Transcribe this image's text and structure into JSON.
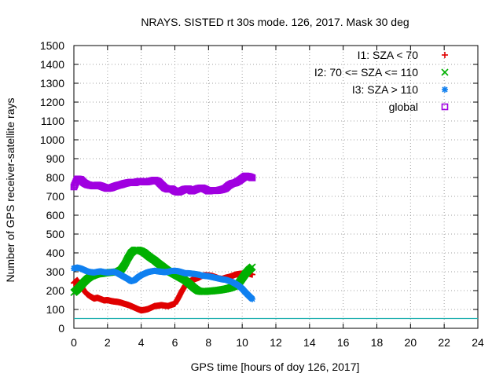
{
  "chart_data": {
    "type": "scatter",
    "title": "NRAYS. SISTED rt 30s mode. 126, 2017. Mask 30 deg",
    "xlabel": "GPS time [hours of doy 126, 2017]",
    "ylabel": "Number of GPS receiver-satellite rays",
    "xlim": [
      0,
      24
    ],
    "ylim": [
      0,
      1500
    ],
    "xticks": [
      0,
      2,
      4,
      6,
      8,
      10,
      12,
      14,
      16,
      18,
      20,
      22,
      24
    ],
    "yticks": [
      0,
      100,
      200,
      300,
      400,
      500,
      600,
      700,
      800,
      900,
      1000,
      1100,
      1200,
      1300,
      1400,
      1500
    ],
    "xtick_labels": [
      "0",
      "2",
      "4",
      "6",
      "8",
      "10",
      "12",
      "14",
      "16",
      "18",
      "20",
      "22",
      "24"
    ],
    "ytick_labels": [
      "0",
      "100",
      "200",
      "300",
      "400",
      "500",
      "600",
      "700",
      "800",
      "900",
      "1000",
      "1100",
      "1200",
      "1300",
      "1400",
      "1500"
    ],
    "grid": true,
    "legend_position": "top-right",
    "series": [
      {
        "name": "I1: SZA < 70",
        "color": "#e00000",
        "marker": "plus",
        "x": [
          0,
          0.2,
          0.4,
          0.6,
          0.8,
          1.0,
          1.2,
          1.4,
          1.6,
          1.8,
          2.0,
          2.2,
          2.4,
          2.6,
          2.8,
          3.0,
          3.2,
          3.4,
          3.6,
          3.8,
          4.0,
          4.2,
          4.4,
          4.6,
          4.8,
          5.0,
          5.2,
          5.4,
          5.6,
          5.8,
          6.0,
          6.2,
          6.4,
          6.6,
          6.8,
          7.0,
          7.2,
          7.4,
          7.6,
          7.8,
          8.0,
          8.2,
          8.4,
          8.6,
          8.8,
          9.0,
          9.2,
          9.4,
          9.6,
          9.8,
          10.0,
          10.2,
          10.4,
          10.6
        ],
        "y": [
          240,
          255,
          230,
          200,
          180,
          168,
          158,
          162,
          155,
          148,
          150,
          145,
          142,
          140,
          136,
          130,
          125,
          118,
          110,
          102,
          95,
          98,
          102,
          110,
          118,
          120,
          123,
          120,
          118,
          125,
          130,
          160,
          195,
          225,
          245,
          255,
          262,
          268,
          278,
          282,
          280,
          278,
          272,
          265,
          262,
          268,
          272,
          278,
          285,
          288,
          290,
          292,
          290,
          285
        ]
      },
      {
        "name": "I2: 70 <= SZA <= 110",
        "color": "#00b000",
        "marker": "cross",
        "x": [
          0,
          0.2,
          0.4,
          0.6,
          0.8,
          1.0,
          1.2,
          1.4,
          1.6,
          1.8,
          2.0,
          2.2,
          2.4,
          2.6,
          2.8,
          3.0,
          3.2,
          3.4,
          3.6,
          3.8,
          4.0,
          4.2,
          4.4,
          4.6,
          4.8,
          5.0,
          5.2,
          5.4,
          5.6,
          5.8,
          6.0,
          6.2,
          6.4,
          6.6,
          6.8,
          7.0,
          7.2,
          7.4,
          7.6,
          7.8,
          8.0,
          8.2,
          8.4,
          8.6,
          8.8,
          9.0,
          9.2,
          9.4,
          9.6,
          9.8,
          10.0,
          10.2,
          10.4,
          10.6
        ],
        "y": [
          190,
          205,
          225,
          245,
          262,
          275,
          282,
          288,
          290,
          293,
          295,
          297,
          298,
          300,
          310,
          335,
          370,
          400,
          415,
          415,
          410,
          400,
          385,
          372,
          360,
          345,
          332,
          318,
          305,
          295,
          285,
          275,
          265,
          255,
          240,
          225,
          210,
          198,
          195,
          195,
          197,
          198,
          200,
          202,
          205,
          208,
          212,
          218,
          225,
          240,
          265,
          290,
          310,
          325
        ]
      },
      {
        "name": "I3: SZA > 110",
        "color": "#1080f0",
        "marker": "star",
        "x": [
          0,
          0.2,
          0.4,
          0.6,
          0.8,
          1.0,
          1.2,
          1.4,
          1.6,
          1.8,
          2.0,
          2.2,
          2.4,
          2.6,
          2.8,
          3.0,
          3.2,
          3.4,
          3.6,
          3.8,
          4.0,
          4.2,
          4.4,
          4.6,
          4.8,
          5.0,
          5.2,
          5.4,
          5.6,
          5.8,
          6.0,
          6.2,
          6.4,
          6.6,
          6.8,
          7.0,
          7.2,
          7.4,
          7.6,
          7.8,
          8.0,
          8.2,
          8.4,
          8.6,
          8.8,
          9.0,
          9.2,
          9.4,
          9.6,
          9.8,
          10.0,
          10.2,
          10.4,
          10.6
        ],
        "y": [
          318,
          322,
          318,
          310,
          302,
          298,
          296,
          300,
          302,
          298,
          296,
          298,
          300,
          292,
          282,
          272,
          262,
          250,
          255,
          270,
          282,
          290,
          298,
          302,
          305,
          302,
          300,
          298,
          300,
          304,
          305,
          303,
          298,
          292,
          292,
          290,
          288,
          285,
          280,
          278,
          276,
          272,
          268,
          264,
          260,
          258,
          252,
          246,
          236,
          225,
          210,
          190,
          172,
          155
        ]
      },
      {
        "name": "global",
        "color": "#a000e0",
        "marker": "square",
        "x": [
          0,
          0.2,
          0.4,
          0.6,
          0.8,
          1.0,
          1.2,
          1.4,
          1.6,
          1.8,
          2.0,
          2.2,
          2.4,
          2.6,
          2.8,
          3.0,
          3.2,
          3.4,
          3.6,
          3.8,
          4.0,
          4.2,
          4.4,
          4.6,
          4.8,
          5.0,
          5.2,
          5.4,
          5.6,
          5.8,
          6.0,
          6.2,
          6.4,
          6.6,
          6.8,
          7.0,
          7.2,
          7.4,
          7.6,
          7.8,
          8.0,
          8.2,
          8.4,
          8.6,
          8.8,
          9.0,
          9.2,
          9.4,
          9.6,
          9.8,
          10.0,
          10.2,
          10.4,
          10.6
        ],
        "y": [
          750,
          792,
          790,
          772,
          762,
          758,
          755,
          760,
          755,
          748,
          742,
          745,
          752,
          758,
          762,
          768,
          772,
          775,
          772,
          778,
          780,
          776,
          778,
          782,
          786,
          780,
          762,
          745,
          738,
          740,
          728,
          722,
          730,
          738,
          740,
          728,
          735,
          742,
          745,
          738,
          728,
          732,
          730,
          732,
          736,
          742,
          758,
          768,
          772,
          782,
          795,
          808,
          805,
          798
        ]
      },
      {
        "name": "",
        "color": "#20b0b0",
        "marker": "line",
        "x": [
          0,
          24
        ],
        "y": [
          52,
          52
        ]
      }
    ]
  }
}
